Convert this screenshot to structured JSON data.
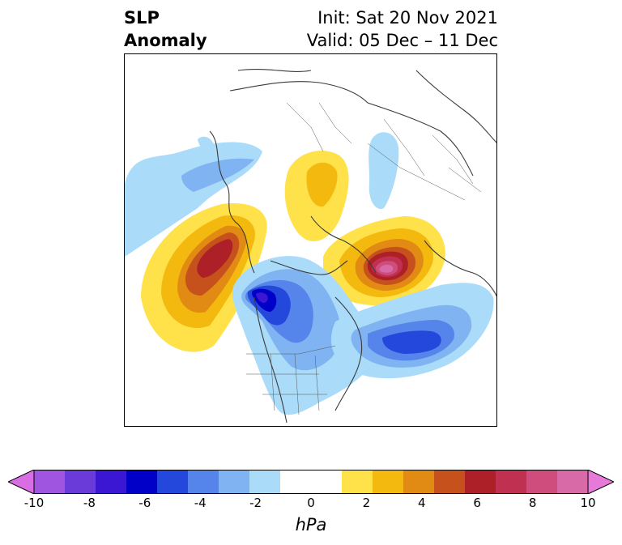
{
  "header": {
    "title_line1": "SLP",
    "title_line2": "Anomaly",
    "init_label": "Init: Sat 20 Nov 2021",
    "valid_label": "Valid: 05 Dec – 11 Dec"
  },
  "colorbar": {
    "unit_label": "hPa",
    "tick_labels": [
      "-10",
      "-8",
      "-6",
      "-4",
      "-2",
      "0",
      "2",
      "4",
      "6",
      "8",
      "10"
    ],
    "colors": [
      "#d96de3",
      "#a055e0",
      "#6a3bd9",
      "#3b17d4",
      "#0000c8",
      "#2447dc",
      "#5585eb",
      "#7fb3f2",
      "#aadbf9",
      "#ffffff",
      "#ffffff",
      "#ffe14a",
      "#f3b90f",
      "#e18a14",
      "#c6511c",
      "#ad2028",
      "#c03050",
      "#cf4d7c",
      "#d96aa8",
      "#e77ad8"
    ],
    "range": [
      -10,
      10
    ]
  },
  "map": {
    "anomalies": [
      {
        "name": "negative-anomaly-north-pacific-west",
        "value": -2
      },
      {
        "name": "positive-anomaly-gulf-of-alaska",
        "value": 6
      },
      {
        "name": "negative-anomaly-western-canada",
        "value": -7
      },
      {
        "name": "negative-anomaly-north-atlantic",
        "value": -5
      },
      {
        "name": "positive-anomaly-greenland-iceland",
        "value": 8
      },
      {
        "name": "positive-anomaly-eastern-siberia",
        "value": 2
      },
      {
        "name": "negative-anomaly-central-siberia",
        "value": -2
      }
    ]
  }
}
